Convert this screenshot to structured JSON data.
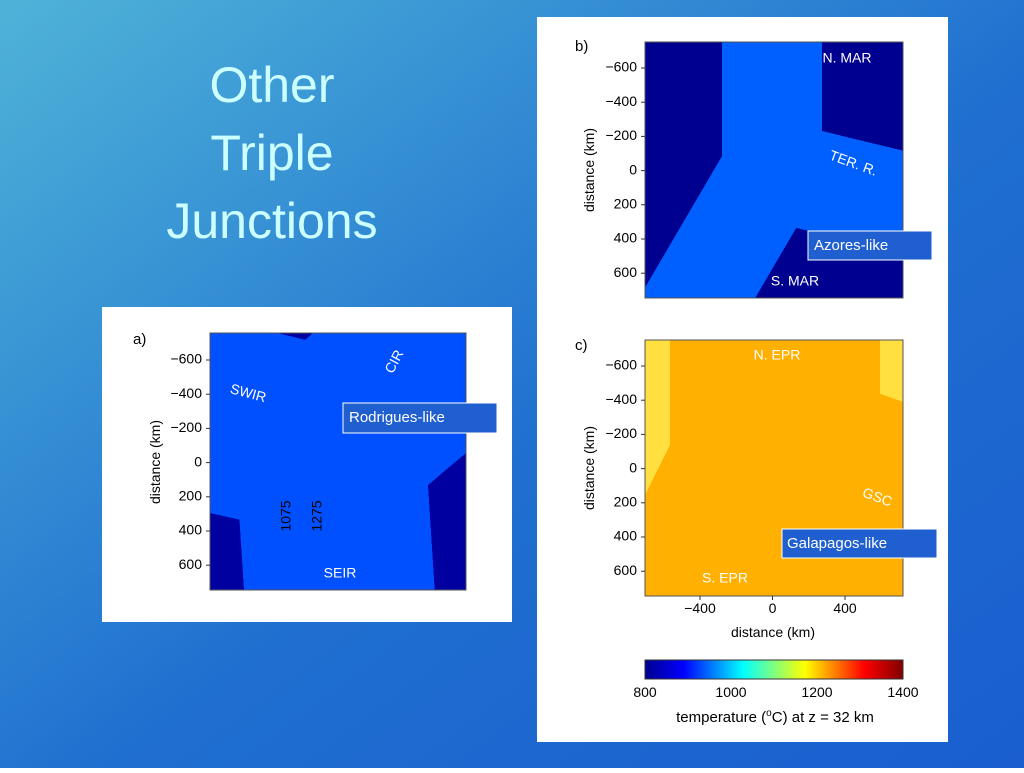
{
  "slide": {
    "title_lines": [
      "Other",
      "Triple",
      "Junctions"
    ]
  },
  "panel_a": {
    "label": "a)",
    "y_axis_label": "distance (km)",
    "y_ticks": [
      "−600",
      "−400",
      "−200",
      "0",
      "200",
      "400",
      "600"
    ],
    "ridges": [
      "SWIR",
      "CIR",
      "SEIR"
    ],
    "contours": [
      "1075",
      "1275"
    ],
    "callout": "Rodrigues-like"
  },
  "panel_b": {
    "label": "b)",
    "y_axis_label": "distance (km)",
    "y_ticks": [
      "−600",
      "−400",
      "−200",
      "0",
      "200",
      "400",
      "600"
    ],
    "ridges": [
      "N. MAR",
      "TER. R.",
      "S. MAR"
    ],
    "callout": "Azores-like"
  },
  "panel_c": {
    "label": "c)",
    "y_axis_label": "distance (km)",
    "y_ticks": [
      "−600",
      "−400",
      "−200",
      "0",
      "200",
      "400",
      "600"
    ],
    "x_ticks": [
      "−400",
      "0",
      "400"
    ],
    "x_axis_label": "distance (km)",
    "ridges": [
      "N. EPR",
      "GSC",
      "S. EPR"
    ],
    "callout": "Galapagos-like"
  },
  "colorbar": {
    "ticks": [
      "800",
      "1000",
      "1200",
      "1400"
    ],
    "label_parts": [
      "temperature (",
      "o",
      "C) at z = 32 km"
    ]
  }
}
